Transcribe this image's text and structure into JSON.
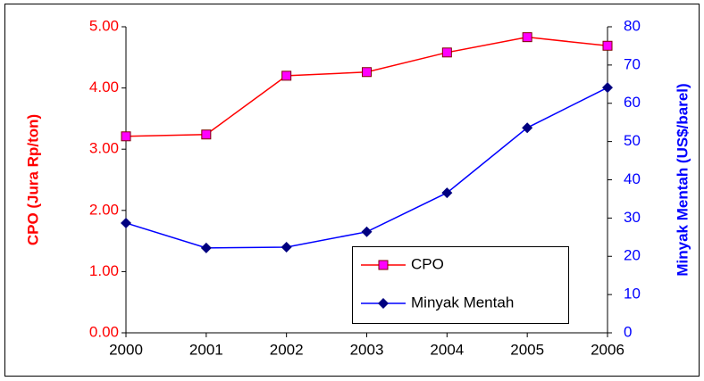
{
  "chart_data": {
    "type": "line",
    "x": [
      2000,
      2001,
      2002,
      2003,
      2004,
      2005,
      2006
    ],
    "xlim": [
      2000,
      2006
    ],
    "xticks": [
      2000,
      2001,
      2002,
      2003,
      2004,
      2005,
      2006
    ],
    "ylabel": "CPO (Jura Rp/ton)",
    "y2label": "Minyak Mentah (US$/barel)",
    "ylim": [
      0,
      5
    ],
    "yticks": [
      {
        "value": 0,
        "label": "0.00"
      },
      {
        "value": 1,
        "label": "1.00"
      },
      {
        "value": 2,
        "label": "2.00"
      },
      {
        "value": 3,
        "label": "3.00"
      },
      {
        "value": 4,
        "label": "4.00"
      },
      {
        "value": 5,
        "label": "5.00"
      }
    ],
    "y2lim": [
      0,
      80
    ],
    "y2ticks": [
      0,
      10,
      20,
      30,
      40,
      50,
      60,
      70,
      80
    ],
    "grid": false,
    "legend": "lower right",
    "series": [
      {
        "name": "CPO",
        "color": "#ff0000",
        "marker": "square",
        "marker_color": "#ff00ff",
        "values": [
          3.21,
          3.24,
          4.2,
          4.26,
          4.58,
          4.83,
          4.69
        ]
      },
      {
        "name": "Minyak Mentah",
        "color": "#0000ff",
        "marker": "diamond",
        "marker_color": "#000080",
        "axis": "y2",
        "values": [
          28.7,
          22.2,
          22.4,
          26.4,
          36.6,
          53.6,
          64.1
        ]
      }
    ]
  }
}
